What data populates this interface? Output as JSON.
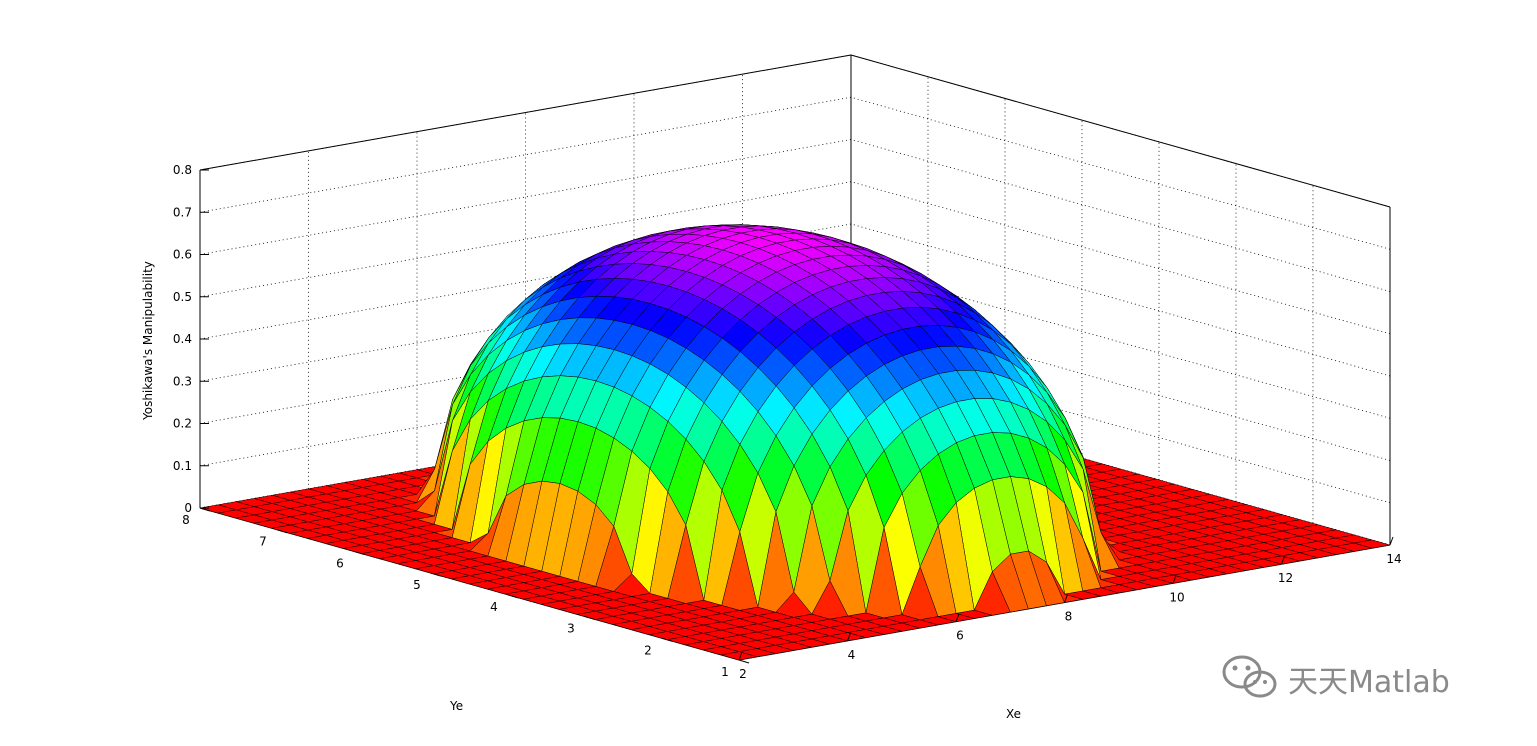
{
  "chart_data": {
    "type": "surface",
    "title": "",
    "xlabel": "Xe",
    "ylabel": "Ye",
    "zlabel": "Yoshikawa's Manipulability",
    "xlim": [
      2,
      14
    ],
    "ylim": [
      1,
      8
    ],
    "zlim": [
      0,
      0.8
    ],
    "x_ticks": [
      "2",
      "4",
      "6",
      "8",
      "10",
      "12",
      "14"
    ],
    "y_ticks": [
      "1",
      "2",
      "3",
      "4",
      "5",
      "6",
      "7",
      "8"
    ],
    "z_ticks": [
      "0",
      "0.1",
      "0.2",
      "0.3",
      "0.4",
      "0.5",
      "0.6",
      "0.7",
      "0.8"
    ],
    "grid": true,
    "colormap": "hsv",
    "surface": {
      "description_free": true,
      "peak_z": 0.7,
      "peak_x": 7.5,
      "peak_y": 4.5,
      "x_range": [
        2.5,
        13
      ],
      "y_range": [
        1,
        7.8
      ]
    }
  },
  "watermark": {
    "text": "天天Matlab",
    "icon": "wechat-icon"
  }
}
